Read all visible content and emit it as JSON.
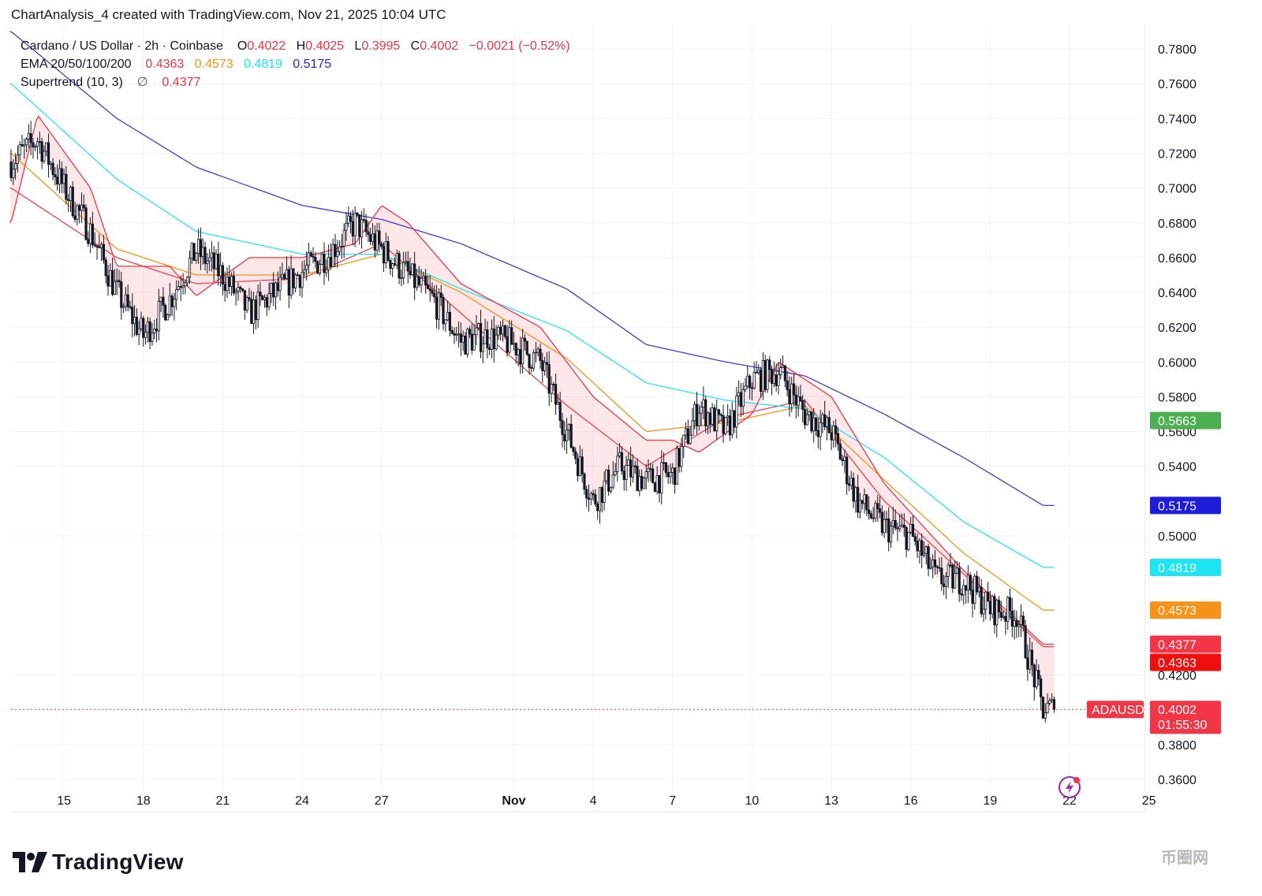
{
  "header": {
    "text": "ChartAnalysis_4 created with TradingView.com, Nov 21, 2025 10:04 UTC"
  },
  "legend": {
    "symbol": "Cardano / US Dollar · 2h · Coinbase",
    "o_label": "O",
    "o_val": "0.4022",
    "h_label": "H",
    "h_val": "0.4025",
    "l_label": "L",
    "l_val": "0.3995",
    "c_label": "C",
    "c_val": "0.4002",
    "change": "−0.0021 (−0.52%)",
    "ema_label": "EMA 20/50/100/200",
    "ema20": "0.4363",
    "ema50": "0.4573",
    "ema100": "0.4819",
    "ema200": "0.5175",
    "st_label": "Supertrend (10, 3)",
    "st_icon": "∅",
    "st_val": "0.4377"
  },
  "brand": {
    "name": "TradingView"
  },
  "watermark": {
    "text": "币圈网"
  },
  "colors": {
    "up": "#26a69a",
    "down": "#ef5350",
    "candle": "#131722",
    "ema20": "#f0444f",
    "ema50": "#f7931a",
    "ema100": "#29e3ee",
    "ema200": "#3d3ddb",
    "st_up": "#4caf50",
    "st_down": "#f23645",
    "grid": "#f0f3fa"
  },
  "chart_data": {
    "type": "line",
    "title": "Cardano / US Dollar · 2h · Coinbase",
    "x_ticks": [
      "15",
      "18",
      "21",
      "24",
      "27",
      "Nov",
      "4",
      "7",
      "10",
      "13",
      "16",
      "19",
      "22",
      "25"
    ],
    "y_ticks": [
      "0.7800",
      "0.7600",
      "0.7400",
      "0.7200",
      "0.7000",
      "0.6800",
      "0.6600",
      "0.6400",
      "0.6200",
      "0.6000",
      "0.5800",
      "0.5600",
      "0.5400",
      "0.5000",
      "0.4200",
      "0.3800",
      "0.3600"
    ],
    "ylim": [
      0.355,
      0.79
    ],
    "x_domain": [
      "Oct 13",
      "Nov 25"
    ],
    "price_series": {
      "name": "ADAUSD",
      "x": [
        "Oct 13",
        "Oct 14",
        "Oct 15",
        "Oct 16",
        "Oct 17",
        "Oct 18",
        "Oct 19",
        "Oct 20",
        "Oct 21",
        "Oct 22",
        "Oct 23",
        "Oct 24",
        "Oct 25",
        "Oct 26",
        "Oct 27",
        "Oct 28",
        "Oct 29",
        "Oct 30",
        "Oct 31",
        "Nov 1",
        "Nov 2",
        "Nov 3",
        "Nov 4",
        "Nov 5",
        "Nov 6",
        "Nov 7",
        "Nov 8",
        "Nov 9",
        "Nov 10",
        "Nov 11",
        "Nov 12",
        "Nov 13",
        "Nov 14",
        "Nov 15",
        "Nov 16",
        "Nov 17",
        "Nov 18",
        "Nov 19",
        "Nov 20",
        "Nov 21"
      ],
      "values": [
        0.715,
        0.728,
        0.7,
        0.675,
        0.64,
        0.615,
        0.636,
        0.664,
        0.65,
        0.628,
        0.64,
        0.652,
        0.662,
        0.68,
        0.665,
        0.65,
        0.635,
        0.612,
        0.615,
        0.61,
        0.6,
        0.56,
        0.52,
        0.54,
        0.532,
        0.535,
        0.575,
        0.56,
        0.59,
        0.595,
        0.57,
        0.56,
        0.52,
        0.505,
        0.5,
        0.475,
        0.475,
        0.458,
        0.455,
        0.4002
      ]
    },
    "series": [
      {
        "name": "EMA 20",
        "last": 0.4363,
        "color": "#f0444f",
        "x": [
          "Oct 13",
          "Oct 17",
          "Oct 20",
          "Oct 24",
          "Oct 27",
          "Oct 30",
          "Nov 3",
          "Nov 6",
          "Nov 9",
          "Nov 12",
          "Nov 15",
          "Nov 18",
          "Nov 21"
        ],
        "values": [
          0.7,
          0.66,
          0.645,
          0.648,
          0.668,
          0.628,
          0.575,
          0.54,
          0.568,
          0.578,
          0.52,
          0.478,
          0.4363
        ]
      },
      {
        "name": "EMA 50",
        "last": 0.4573,
        "color": "#f7931a",
        "x": [
          "Oct 13",
          "Oct 17",
          "Oct 20",
          "Oct 24",
          "Oct 27",
          "Oct 30",
          "Nov 3",
          "Nov 6",
          "Nov 9",
          "Nov 12",
          "Nov 15",
          "Nov 18",
          "Nov 21"
        ],
        "values": [
          0.72,
          0.665,
          0.65,
          0.65,
          0.662,
          0.64,
          0.602,
          0.56,
          0.565,
          0.575,
          0.532,
          0.49,
          0.4573
        ]
      },
      {
        "name": "EMA 100",
        "last": 0.4819,
        "color": "#29e3ee",
        "x": [
          "Oct 13",
          "Oct 17",
          "Oct 20",
          "Oct 24",
          "Oct 27",
          "Oct 30",
          "Nov 3",
          "Nov 6",
          "Nov 9",
          "Nov 12",
          "Nov 15",
          "Nov 18",
          "Nov 21"
        ],
        "values": [
          0.76,
          0.705,
          0.675,
          0.662,
          0.662,
          0.642,
          0.618,
          0.588,
          0.578,
          0.573,
          0.545,
          0.508,
          0.4819
        ]
      },
      {
        "name": "EMA 200",
        "last": 0.5175,
        "color": "#3d3ddb",
        "x": [
          "Oct 13",
          "Oct 17",
          "Oct 20",
          "Oct 24",
          "Oct 27",
          "Oct 30",
          "Nov 3",
          "Nov 6",
          "Nov 9",
          "Nov 12",
          "Nov 15",
          "Nov 18",
          "Nov 21"
        ],
        "values": [
          0.79,
          0.74,
          0.712,
          0.69,
          0.682,
          0.668,
          0.642,
          0.61,
          0.6,
          0.592,
          0.57,
          0.545,
          0.5175
        ]
      },
      {
        "name": "Supertrend",
        "last": 0.4377,
        "color": "#f23645",
        "x": [
          "Oct 13",
          "Oct 14",
          "Oct 16",
          "Oct 17",
          "Oct 19",
          "Oct 20",
          "Oct 22",
          "Oct 24",
          "Oct 26",
          "Oct 27",
          "Oct 28",
          "Oct 30",
          "Nov 2",
          "Nov 4",
          "Nov 6",
          "Nov 7",
          "Nov 8",
          "Nov 10",
          "Nov 11",
          "Nov 13",
          "Nov 15",
          "Nov 18",
          "Nov 21"
        ],
        "values": [
          0.68,
          0.742,
          0.7,
          0.655,
          0.655,
          0.638,
          0.66,
          0.66,
          0.668,
          0.69,
          0.68,
          0.645,
          0.62,
          0.58,
          0.555,
          0.555,
          0.548,
          0.57,
          0.6,
          0.58,
          0.53,
          0.48,
          0.4377
        ]
      }
    ],
    "price_labels": [
      {
        "name": "Supertrend up level",
        "value": "0.5663",
        "color": "#4caf50"
      },
      {
        "name": "EMA 200",
        "value": "0.5175",
        "color": "#1c1cd9"
      },
      {
        "name": "EMA 100",
        "value": "0.4819",
        "color": "#1ee5f2"
      },
      {
        "name": "EMA 50",
        "value": "0.4573",
        "color": "#f7931a"
      },
      {
        "name": "Supertrend",
        "value": "0.4377",
        "color": "#f23645"
      },
      {
        "name": "EMA 20",
        "value": "0.4363",
        "color": "#ef0f0f"
      }
    ],
    "last_price": {
      "symbol": "ADAUSD",
      "value": "0.4002",
      "countdown": "01:55:30"
    },
    "grid": true
  }
}
